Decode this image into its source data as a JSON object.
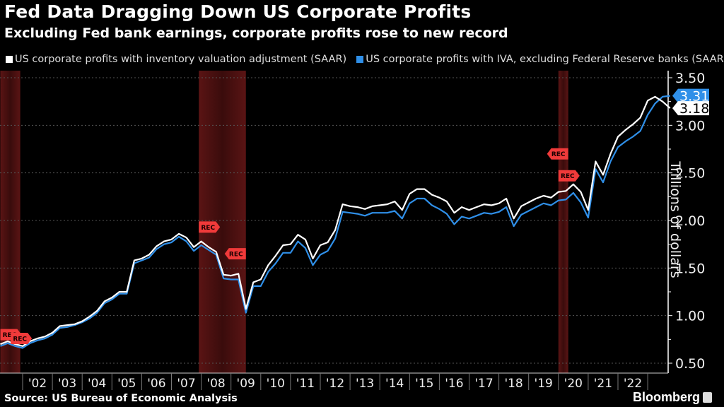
{
  "header": {
    "title": "Fed Data Dragging Down US Corporate Profits",
    "subtitle": "Excluding Fed bank earnings, corporate profits rose to new record"
  },
  "footer": {
    "source": "Source: US Bureau of Economic Analysis",
    "brand": "Bloomberg"
  },
  "chart_data": {
    "type": "line",
    "title": "Fed Data Dragging Down US Corporate Profits",
    "subtitle": "Excluding Fed bank earnings, corporate profits rose to new record",
    "xlabel": "",
    "ylabel": "Trillions of dollars",
    "ylim": [
      0.35,
      3.6
    ],
    "yticks": [
      "0.50",
      "1.00",
      "1.50",
      "2.00",
      "2.50",
      "3.00",
      "3.50"
    ],
    "ytick_values": [
      0.5,
      1.0,
      1.5,
      2.0,
      2.5,
      3.0,
      3.5
    ],
    "xticks": [
      "'02",
      "'03",
      "'04",
      "'05",
      "'06",
      "'07",
      "'08",
      "'09",
      "'10",
      "'11",
      "'12",
      "'13",
      "'14",
      "'15",
      "'16",
      "'17",
      "'18",
      "'19",
      "'20",
      "'21",
      "'22"
    ],
    "x_start": "2001Q2",
    "x_frequency": "quarterly",
    "grid": true,
    "legend_position": "top-left",
    "recessions": [
      {
        "start": 2001.25,
        "end": 2001.92,
        "label": "REC"
      },
      {
        "start": 2007.92,
        "end": 2009.5,
        "label": "REC"
      },
      {
        "start": 2020.0,
        "end": 2020.33,
        "label": "REC"
      }
    ],
    "series": [
      {
        "name": "US corporate profits with inventory valuation adjustment (SAAR)",
        "color": "#ffffff",
        "last_value": "3.18",
        "values": [
          0.7,
          0.73,
          0.7,
          0.68,
          0.73,
          0.76,
          0.78,
          0.82,
          0.89,
          0.9,
          0.91,
          0.94,
          0.99,
          1.05,
          1.15,
          1.19,
          1.25,
          1.25,
          1.58,
          1.6,
          1.64,
          1.73,
          1.78,
          1.8,
          1.86,
          1.82,
          1.72,
          1.78,
          1.72,
          1.67,
          1.43,
          1.42,
          1.44,
          1.07,
          1.35,
          1.38,
          1.53,
          1.63,
          1.74,
          1.75,
          1.85,
          1.8,
          1.6,
          1.74,
          1.77,
          1.9,
          2.17,
          2.15,
          2.14,
          2.12,
          2.15,
          2.16,
          2.17,
          2.2,
          2.11,
          2.28,
          2.33,
          2.33,
          2.27,
          2.24,
          2.2,
          2.08,
          2.14,
          2.11,
          2.14,
          2.17,
          2.16,
          2.18,
          2.23,
          2.02,
          2.15,
          2.19,
          2.23,
          2.26,
          2.24,
          2.3,
          2.31,
          2.38,
          2.3,
          2.11,
          2.62,
          2.48,
          2.7,
          2.88,
          2.95,
          3.01,
          3.08,
          3.26,
          3.3,
          3.25,
          3.18
        ]
      },
      {
        "name": "US corporate profits with IVA, excluding Federal Reserve banks (SAAR)",
        "color": "#2f8fe8",
        "last_value": "3.31",
        "values": [
          0.68,
          0.71,
          0.68,
          0.66,
          0.71,
          0.74,
          0.76,
          0.8,
          0.87,
          0.88,
          0.9,
          0.93,
          0.97,
          1.03,
          1.13,
          1.17,
          1.23,
          1.23,
          1.55,
          1.58,
          1.61,
          1.7,
          1.75,
          1.77,
          1.83,
          1.78,
          1.68,
          1.74,
          1.69,
          1.64,
          1.39,
          1.38,
          1.38,
          1.03,
          1.31,
          1.31,
          1.46,
          1.55,
          1.66,
          1.66,
          1.78,
          1.71,
          1.53,
          1.64,
          1.68,
          1.81,
          2.09,
          2.08,
          2.07,
          2.05,
          2.08,
          2.08,
          2.08,
          2.1,
          2.02,
          2.18,
          2.23,
          2.23,
          2.16,
          2.12,
          2.07,
          1.96,
          2.04,
          2.02,
          2.05,
          2.08,
          2.07,
          2.09,
          2.14,
          1.94,
          2.06,
          2.1,
          2.14,
          2.18,
          2.16,
          2.21,
          2.22,
          2.29,
          2.19,
          2.03,
          2.54,
          2.4,
          2.62,
          2.77,
          2.83,
          2.88,
          2.94,
          3.11,
          3.23,
          3.3,
          3.31
        ]
      }
    ]
  }
}
